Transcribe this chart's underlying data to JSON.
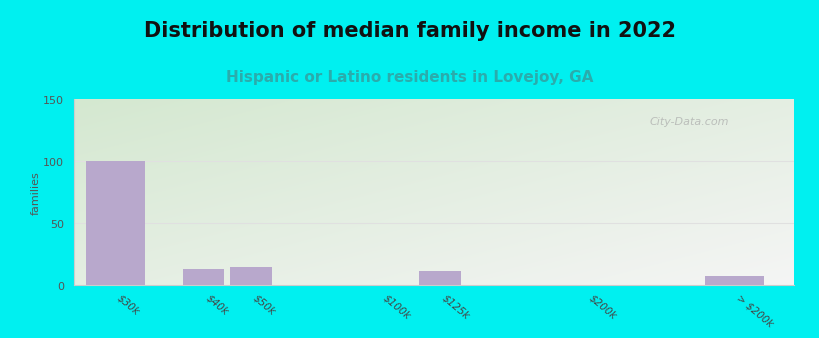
{
  "title": "Distribution of median family income in 2022",
  "subtitle": "Hispanic or Latino residents in Lovejoy, GA",
  "bar_labels": [
    "$30k",
    "$40k",
    "$50k",
    "$100k",
    "$125k",
    "$200k",
    "> $200k"
  ],
  "values": [
    100,
    13,
    15,
    0,
    12,
    0,
    8
  ],
  "bar_color": "#b8a8cc",
  "background_color": "#00f0f0",
  "plot_bg_left": "#d4e8d0",
  "plot_bg_right": "#f5f5f5",
  "ylabel": "families",
  "ylim": [
    0,
    150
  ],
  "yticks": [
    0,
    50,
    100,
    150
  ],
  "title_fontsize": 15,
  "title_fontweight": "bold",
  "title_color": "#111111",
  "subtitle_fontsize": 11,
  "subtitle_color": "#2aacac",
  "subtitle_fontweight": "bold",
  "watermark": "City-Data.com",
  "watermark_color": "#aaaaaa",
  "bar_positions": [
    0,
    1.5,
    2.3,
    4.5,
    5.5,
    8.0,
    10.5
  ],
  "bar_widths": [
    1.0,
    0.7,
    0.7,
    0.7,
    0.7,
    1.8,
    1.0
  ],
  "x_tick_positions": [
    0,
    1.5,
    2.3,
    4.5,
    5.5,
    8.0,
    10.5
  ],
  "x_tick_labels": [
    "$30k",
    "$40k",
    "$50k",
    "$100k",
    "$125k",
    "$200k",
    "> $200k"
  ],
  "xlim": [
    -0.7,
    11.5
  ],
  "gridline_color": "#e0e0e0",
  "spine_color": "#cccccc"
}
